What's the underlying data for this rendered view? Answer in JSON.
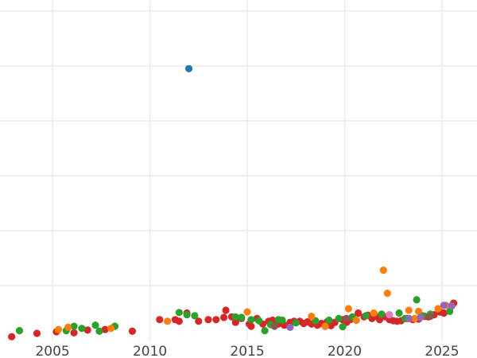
{
  "chart_data": {
    "type": "scatter",
    "title": "",
    "xlabel": "",
    "ylabel": "",
    "xlim": [
      2002.3,
      2026.8
    ],
    "ylim": [
      0,
      6.2
    ],
    "x_ticks": [
      2005,
      2010,
      2015,
      2020,
      2025
    ],
    "x_tick_labels": [
      "2005",
      "2010",
      "2015",
      "2020",
      "2025"
    ],
    "y_grid": [
      1,
      2,
      3,
      4,
      5,
      6
    ],
    "grid": true,
    "legend": "none",
    "series": [
      {
        "color": "#d62728",
        "points": [
          [
            2002.9,
            0.07
          ],
          [
            2004.2,
            0.13
          ],
          [
            2005.2,
            0.16
          ],
          [
            2006.1,
            0.14
          ],
          [
            2006.8,
            0.19
          ],
          [
            2007.7,
            0.2
          ],
          [
            2009.1,
            0.17
          ],
          [
            2010.5,
            0.38
          ],
          [
            2011.3,
            0.38
          ],
          [
            2011.5,
            0.35
          ],
          [
            2011.9,
            0.5
          ],
          [
            2012.5,
            0.35
          ],
          [
            2013.0,
            0.38
          ],
          [
            2013.4,
            0.38
          ],
          [
            2013.8,
            0.42
          ],
          [
            2013.9,
            0.55
          ],
          [
            2014.2,
            0.43
          ],
          [
            2014.4,
            0.33
          ],
          [
            2014.7,
            0.4
          ],
          [
            2015.1,
            0.3
          ],
          [
            2015.2,
            0.26
          ],
          [
            2015.5,
            0.4
          ],
          [
            2015.8,
            0.3
          ],
          [
            2016.1,
            0.35
          ],
          [
            2016.3,
            0.37
          ],
          [
            2016.6,
            0.3
          ],
          [
            2016.9,
            0.28
          ],
          [
            2017.2,
            0.33
          ],
          [
            2017.4,
            0.35
          ],
          [
            2017.7,
            0.35
          ],
          [
            2017.9,
            0.31
          ],
          [
            2018.1,
            0.34
          ],
          [
            2018.3,
            0.3
          ],
          [
            2018.6,
            0.28
          ],
          [
            2018.8,
            0.31
          ],
          [
            2019.1,
            0.34
          ],
          [
            2019.3,
            0.27
          ],
          [
            2019.5,
            0.33
          ],
          [
            2019.9,
            0.38
          ],
          [
            2020.1,
            0.33
          ],
          [
            2020.3,
            0.38
          ],
          [
            2020.7,
            0.5
          ],
          [
            2021.0,
            0.43
          ],
          [
            2021.2,
            0.46
          ],
          [
            2021.4,
            0.4
          ],
          [
            2021.6,
            0.44
          ],
          [
            2021.8,
            0.38
          ],
          [
            2022.1,
            0.43
          ],
          [
            2022.3,
            0.38
          ],
          [
            2022.5,
            0.36
          ],
          [
            2022.7,
            0.35
          ],
          [
            2022.9,
            0.36
          ],
          [
            2023.2,
            0.4
          ],
          [
            2023.5,
            0.38
          ],
          [
            2023.8,
            0.39
          ],
          [
            2024.1,
            0.44
          ],
          [
            2024.3,
            0.43
          ],
          [
            2024.6,
            0.47
          ],
          [
            2024.9,
            0.52
          ],
          [
            2025.1,
            0.5
          ],
          [
            2025.6,
            0.68
          ]
        ]
      },
      {
        "color": "#2ca02c",
        "points": [
          [
            2003.3,
            0.18
          ],
          [
            2005.7,
            0.18
          ],
          [
            2006.1,
            0.26
          ],
          [
            2006.5,
            0.22
          ],
          [
            2007.2,
            0.28
          ],
          [
            2007.4,
            0.17
          ],
          [
            2008.2,
            0.26
          ],
          [
            2011.5,
            0.51
          ],
          [
            2011.9,
            0.47
          ],
          [
            2012.3,
            0.45
          ],
          [
            2014.4,
            0.43
          ],
          [
            2014.7,
            0.42
          ],
          [
            2015.2,
            0.38
          ],
          [
            2015.6,
            0.36
          ],
          [
            2015.9,
            0.18
          ],
          [
            2016.2,
            0.29
          ],
          [
            2016.6,
            0.38
          ],
          [
            2016.8,
            0.37
          ],
          [
            2017.5,
            0.32
          ],
          [
            2018.5,
            0.36
          ],
          [
            2019.2,
            0.37
          ],
          [
            2019.7,
            0.4
          ],
          [
            2019.9,
            0.25
          ],
          [
            2020.4,
            0.43
          ],
          [
            2021.1,
            0.45
          ],
          [
            2021.9,
            0.48
          ],
          [
            2022.8,
            0.5
          ],
          [
            2023.1,
            0.4
          ],
          [
            2023.7,
            0.74
          ],
          [
            2024.0,
            0.45
          ],
          [
            2024.4,
            0.48
          ],
          [
            2025.4,
            0.53
          ]
        ]
      },
      {
        "color": "#ff7f0e",
        "points": [
          [
            2005.3,
            0.2
          ],
          [
            2005.8,
            0.24
          ],
          [
            2008.0,
            0.22
          ],
          [
            2010.9,
            0.35
          ],
          [
            2015.0,
            0.52
          ],
          [
            2018.3,
            0.44
          ],
          [
            2019.0,
            0.26
          ],
          [
            2020.2,
            0.58
          ],
          [
            2020.6,
            0.37
          ],
          [
            2021.5,
            0.5
          ],
          [
            2022.0,
            1.28
          ],
          [
            2022.2,
            0.86
          ],
          [
            2023.3,
            0.55
          ],
          [
            2023.6,
            0.4
          ],
          [
            2023.8,
            0.53
          ],
          [
            2024.8,
            0.58
          ],
          [
            2025.2,
            0.64
          ]
        ]
      },
      {
        "color": "#9467bd",
        "points": [
          [
            2017.2,
            0.24
          ],
          [
            2023.3,
            0.4
          ],
          [
            2023.9,
            0.42
          ],
          [
            2025.1,
            0.64
          ],
          [
            2025.5,
            0.63
          ]
        ]
      },
      {
        "color": "#e377c2",
        "points": [
          [
            2022.3,
            0.47
          ]
        ]
      },
      {
        "color": "#8c564b",
        "points": [
          [
            2016.4,
            0.26
          ],
          [
            2020.1,
            0.4
          ],
          [
            2024.4,
            0.44
          ]
        ]
      },
      {
        "color": "#1f77b4",
        "points": [
          [
            2012.0,
            4.95
          ]
        ]
      }
    ]
  }
}
